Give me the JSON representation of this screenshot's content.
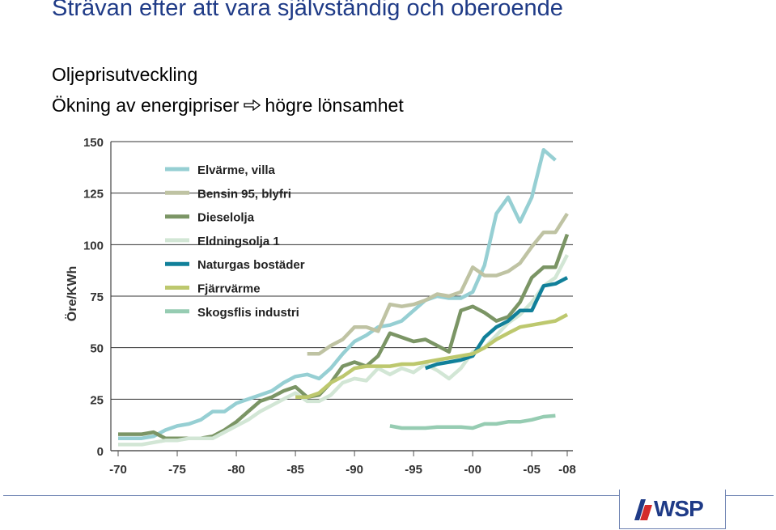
{
  "header": {
    "title": "Strävan efter att vara självständig och oberoende",
    "subtitle1": "Oljeprisutveckling",
    "subtitle2_part1": "Ökning av energipriser",
    "subtitle2_part2": "högre lönsamhet"
  },
  "logo": {
    "text": "WSP"
  },
  "colors": {
    "title": "#1f3b87",
    "footer_line": "#6a7fb0"
  },
  "chart_data": {
    "type": "line",
    "ylabel": "Öre/KWh",
    "ylim": [
      0,
      150
    ],
    "yticks": [
      0,
      25,
      50,
      75,
      100,
      125,
      150
    ],
    "xlim": [
      1970,
      2008
    ],
    "xticks": [
      {
        "v": 1970,
        "label": "-70"
      },
      {
        "v": 1975,
        "label": "-75"
      },
      {
        "v": 1980,
        "label": "-80"
      },
      {
        "v": 1985,
        "label": "-85"
      },
      {
        "v": 1990,
        "label": "-90"
      },
      {
        "v": 1995,
        "label": "-95"
      },
      {
        "v": 2000,
        "label": "-00"
      },
      {
        "v": 2005,
        "label": "-05"
      },
      {
        "v": 2008,
        "label": "-08"
      }
    ],
    "grid": "horizontal",
    "legend_position": "top-left",
    "series": [
      {
        "name": "Elvärme, villa",
        "color": "#96cfd3",
        "points": [
          [
            1970,
            6
          ],
          [
            1971,
            6
          ],
          [
            1972,
            6
          ],
          [
            1973,
            7
          ],
          [
            1974,
            10
          ],
          [
            1975,
            12
          ],
          [
            1976,
            13
          ],
          [
            1977,
            15
          ],
          [
            1978,
            19
          ],
          [
            1979,
            19
          ],
          [
            1980,
            23
          ],
          [
            1981,
            25
          ],
          [
            1982,
            27
          ],
          [
            1983,
            29
          ],
          [
            1984,
            33
          ],
          [
            1985,
            36
          ],
          [
            1986,
            37
          ],
          [
            1987,
            35
          ],
          [
            1988,
            40
          ],
          [
            1989,
            47
          ],
          [
            1990,
            53
          ],
          [
            1991,
            56
          ],
          [
            1992,
            60
          ],
          [
            1993,
            61
          ],
          [
            1994,
            63
          ],
          [
            1995,
            68
          ],
          [
            1996,
            73
          ],
          [
            1997,
            75
          ],
          [
            1998,
            74
          ],
          [
            1999,
            74
          ],
          [
            2000,
            77
          ],
          [
            2001,
            90
          ],
          [
            2002,
            115
          ],
          [
            2003,
            123
          ],
          [
            2004,
            111
          ],
          [
            2005,
            123
          ],
          [
            2006,
            146
          ],
          [
            2007,
            141
          ]
        ]
      },
      {
        "name": "Bensin 95, blyfri",
        "color": "#bfc3a3",
        "points": [
          [
            1986,
            47
          ],
          [
            1987,
            47
          ],
          [
            1988,
            51
          ],
          [
            1989,
            54
          ],
          [
            1990,
            60
          ],
          [
            1991,
            60
          ],
          [
            1992,
            58
          ],
          [
            1993,
            71
          ],
          [
            1994,
            70
          ],
          [
            1995,
            71
          ],
          [
            1996,
            73
          ],
          [
            1997,
            76
          ],
          [
            1998,
            75
          ],
          [
            1999,
            77
          ],
          [
            2000,
            89
          ],
          [
            2001,
            85
          ],
          [
            2002,
            85
          ],
          [
            2003,
            87
          ],
          [
            2004,
            91
          ],
          [
            2005,
            99
          ],
          [
            2006,
            106
          ],
          [
            2007,
            106
          ],
          [
            2008,
            115
          ]
        ]
      },
      {
        "name": "Dieselolja",
        "color": "#7b9565",
        "points": [
          [
            1970,
            8
          ],
          [
            1971,
            8
          ],
          [
            1972,
            8
          ],
          [
            1973,
            9
          ],
          [
            1974,
            6
          ],
          [
            1975,
            6
          ],
          [
            1976,
            6
          ],
          [
            1977,
            6
          ],
          [
            1978,
            7
          ],
          [
            1979,
            10
          ],
          [
            1980,
            14
          ],
          [
            1981,
            19
          ],
          [
            1982,
            24
          ],
          [
            1983,
            26
          ],
          [
            1984,
            29
          ],
          [
            1985,
            31
          ],
          [
            1986,
            26
          ],
          [
            1987,
            27
          ],
          [
            1988,
            33
          ],
          [
            1989,
            41
          ],
          [
            1990,
            43
          ],
          [
            1991,
            41
          ],
          [
            1992,
            46
          ],
          [
            1993,
            57
          ],
          [
            1994,
            55
          ],
          [
            1995,
            53
          ],
          [
            1996,
            54
          ],
          [
            1997,
            51
          ],
          [
            1998,
            48
          ],
          [
            1999,
            68
          ],
          [
            2000,
            70
          ],
          [
            2001,
            67
          ],
          [
            2002,
            63
          ],
          [
            2003,
            65
          ],
          [
            2004,
            72
          ],
          [
            2005,
            84
          ],
          [
            2006,
            89
          ],
          [
            2007,
            89
          ],
          [
            2008,
            105
          ]
        ]
      },
      {
        "name": "Eldningsolja 1",
        "color": "#d2e6d5",
        "points": [
          [
            1970,
            3
          ],
          [
            1971,
            3
          ],
          [
            1972,
            3
          ],
          [
            1973,
            4
          ],
          [
            1974,
            5
          ],
          [
            1975,
            5
          ],
          [
            1976,
            6
          ],
          [
            1977,
            6
          ],
          [
            1978,
            6
          ],
          [
            1979,
            9
          ],
          [
            1980,
            12
          ],
          [
            1981,
            15
          ],
          [
            1982,
            19
          ],
          [
            1983,
            22
          ],
          [
            1984,
            25
          ],
          [
            1985,
            28
          ],
          [
            1986,
            24
          ],
          [
            1987,
            24
          ],
          [
            1988,
            27
          ],
          [
            1989,
            33
          ],
          [
            1990,
            35
          ],
          [
            1991,
            34
          ],
          [
            1992,
            40
          ],
          [
            1993,
            37
          ],
          [
            1994,
            40
          ],
          [
            1995,
            38
          ],
          [
            1996,
            42
          ],
          [
            1997,
            39
          ],
          [
            1998,
            35
          ],
          [
            1999,
            40
          ],
          [
            2000,
            48
          ],
          [
            2001,
            50
          ],
          [
            2002,
            56
          ],
          [
            2003,
            62
          ],
          [
            2004,
            66
          ],
          [
            2005,
            72
          ],
          [
            2006,
            80
          ],
          [
            2007,
            84
          ],
          [
            2008,
            95
          ]
        ]
      },
      {
        "name": "Naturgas bostäder",
        "color": "#11809a",
        "points": [
          [
            1996,
            40
          ],
          [
            1997,
            42
          ],
          [
            1998,
            43
          ],
          [
            1999,
            44
          ],
          [
            2000,
            46
          ],
          [
            2001,
            55
          ],
          [
            2002,
            60
          ],
          [
            2003,
            63
          ],
          [
            2004,
            68
          ],
          [
            2005,
            68
          ],
          [
            2006,
            80
          ],
          [
            2007,
            81
          ],
          [
            2008,
            84
          ]
        ]
      },
      {
        "name": "Fjärrvärme",
        "color": "#bdc86e",
        "points": [
          [
            1985,
            26
          ],
          [
            1986,
            26
          ],
          [
            1987,
            28
          ],
          [
            1988,
            33
          ],
          [
            1989,
            36
          ],
          [
            1990,
            40
          ],
          [
            1991,
            41
          ],
          [
            1992,
            41
          ],
          [
            1993,
            41
          ],
          [
            1994,
            42
          ],
          [
            1995,
            42
          ],
          [
            1996,
            43
          ],
          [
            1997,
            44
          ],
          [
            1998,
            45
          ],
          [
            1999,
            46
          ],
          [
            2000,
            47
          ],
          [
            2001,
            50
          ],
          [
            2002,
            54
          ],
          [
            2003,
            57
          ],
          [
            2004,
            60
          ],
          [
            2005,
            61
          ],
          [
            2006,
            62
          ],
          [
            2007,
            63
          ],
          [
            2008,
            66
          ]
        ]
      },
      {
        "name": "Skogsflis industri",
        "color": "#96ccb2",
        "points": [
          [
            1993,
            12
          ],
          [
            1994,
            11
          ],
          [
            1995,
            11
          ],
          [
            1996,
            11
          ],
          [
            1997,
            11.5
          ],
          [
            1998,
            11.5
          ],
          [
            1999,
            11.5
          ],
          [
            2000,
            11
          ],
          [
            2001,
            13
          ],
          [
            2002,
            13
          ],
          [
            2003,
            14
          ],
          [
            2004,
            14
          ],
          [
            2005,
            15
          ],
          [
            2006,
            16.5
          ],
          [
            2007,
            17
          ]
        ]
      }
    ]
  }
}
